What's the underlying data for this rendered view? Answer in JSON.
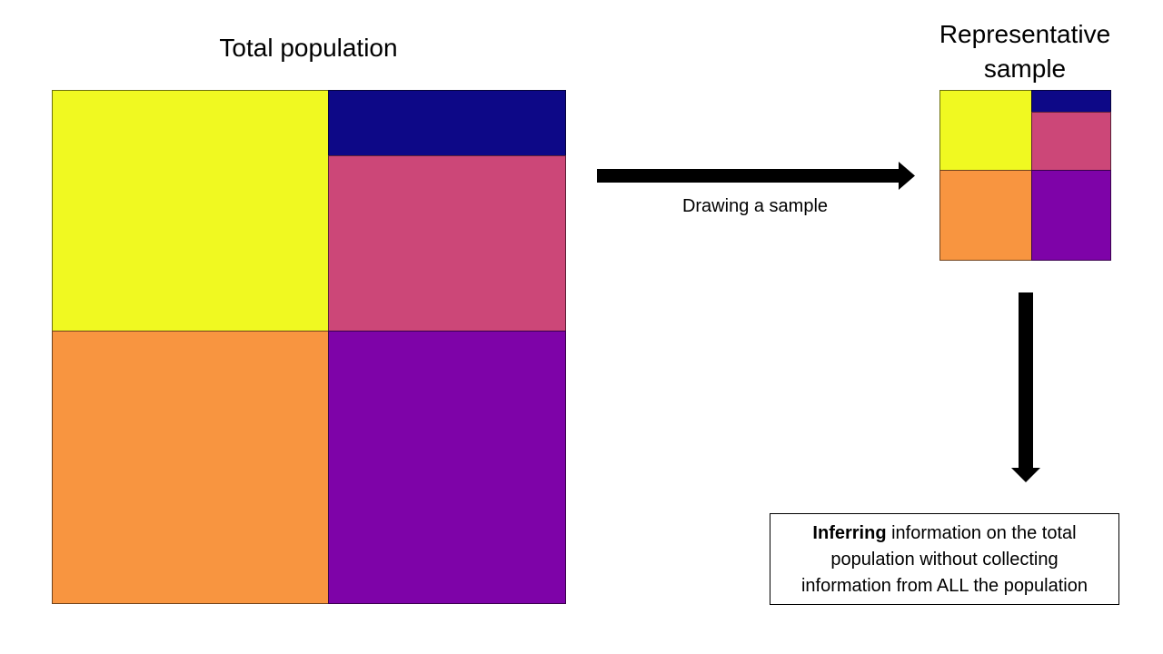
{
  "population": {
    "title": "Total population"
  },
  "sample": {
    "title_line1": "Representative",
    "title_line2": "sample"
  },
  "arrow": {
    "caption": "Drawing a sample"
  },
  "inference": {
    "bold": "Inferring",
    "line1_rest": " information on the total",
    "line2": "population without collecting",
    "line3": "information from ALL the population"
  },
  "colors": {
    "yellow": "#f0f921",
    "navy": "#0d0887",
    "pink": "#cc4778",
    "orange": "#f89540",
    "purple": "#7e03a8"
  }
}
